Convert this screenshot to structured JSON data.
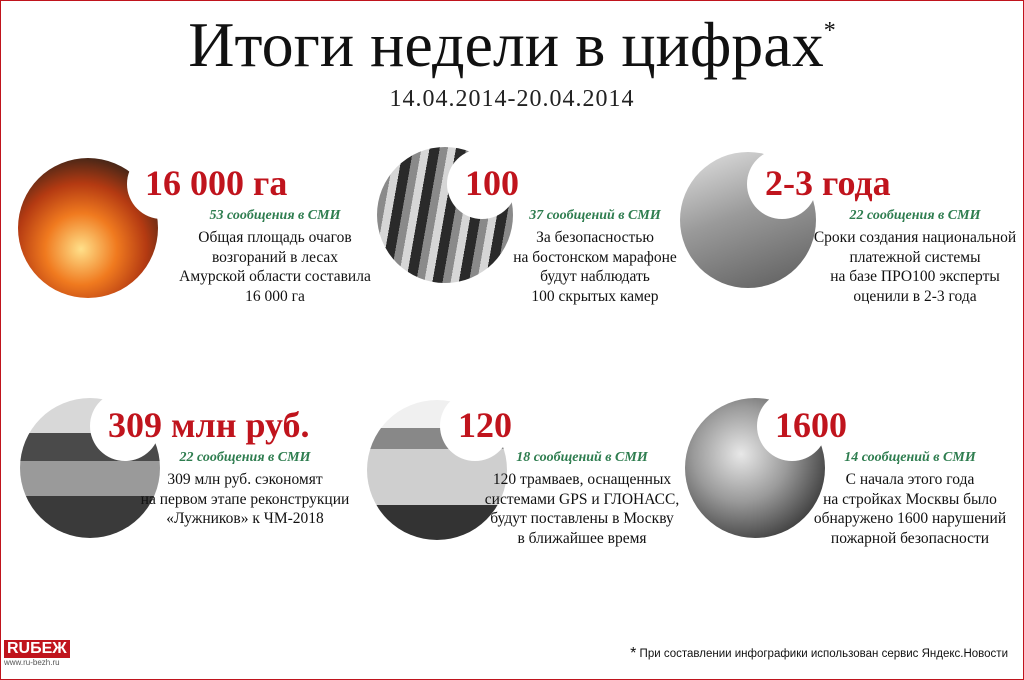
{
  "header": {
    "title": "Итоги недели в цифрах",
    "asterisk": "*",
    "dates": "14.04.2014-20.04.2014"
  },
  "items": [
    {
      "figure": "16 000 га",
      "mentions": "53 сообщения в СМИ",
      "lines": [
        "Общая площадь очагов",
        "возгораний в лесах",
        "Амурской области составила",
        "16 000 га"
      ]
    },
    {
      "figure": "100",
      "mentions": "37 сообщений в СМИ",
      "lines": [
        "За безопасностью",
        "на бостонском марафоне",
        "будут наблюдать",
        "100 скрытых камер"
      ]
    },
    {
      "figure": "2-3 года",
      "mentions": "22 сообщения в СМИ",
      "lines": [
        "Сроки создания национальной",
        "платежной системы",
        "на базе ПРО100 эксперты",
        "оценили в 2-3 года"
      ]
    },
    {
      "figure": "309 млн руб.",
      "mentions": "22 сообщения в СМИ",
      "lines": [
        "309 млн руб. сэкономят",
        "на первом этапе реконструкции",
        "«Лужников» к ЧМ-2018"
      ]
    },
    {
      "figure": "120",
      "mentions": "18 сообщений в СМИ",
      "lines": [
        "120 трамваев, оснащенных",
        "системами GPS и ГЛОНАСС,",
        "будут поставлены в Москву",
        "в ближайшее время"
      ]
    },
    {
      "figure": "1600",
      "mentions": "14 сообщений в СМИ",
      "lines": [
        "С начала этого года",
        "на стройках Москвы было",
        "обнаружено 1600 нарушений",
        "пожарной безопасности"
      ]
    }
  ],
  "logo": {
    "name": "RUБЕЖ",
    "url": "www.ru-bezh.ru"
  },
  "footnote": {
    "mark": "*",
    "text": "При составлении инфографики использован сервис Яндекс.Новости"
  }
}
